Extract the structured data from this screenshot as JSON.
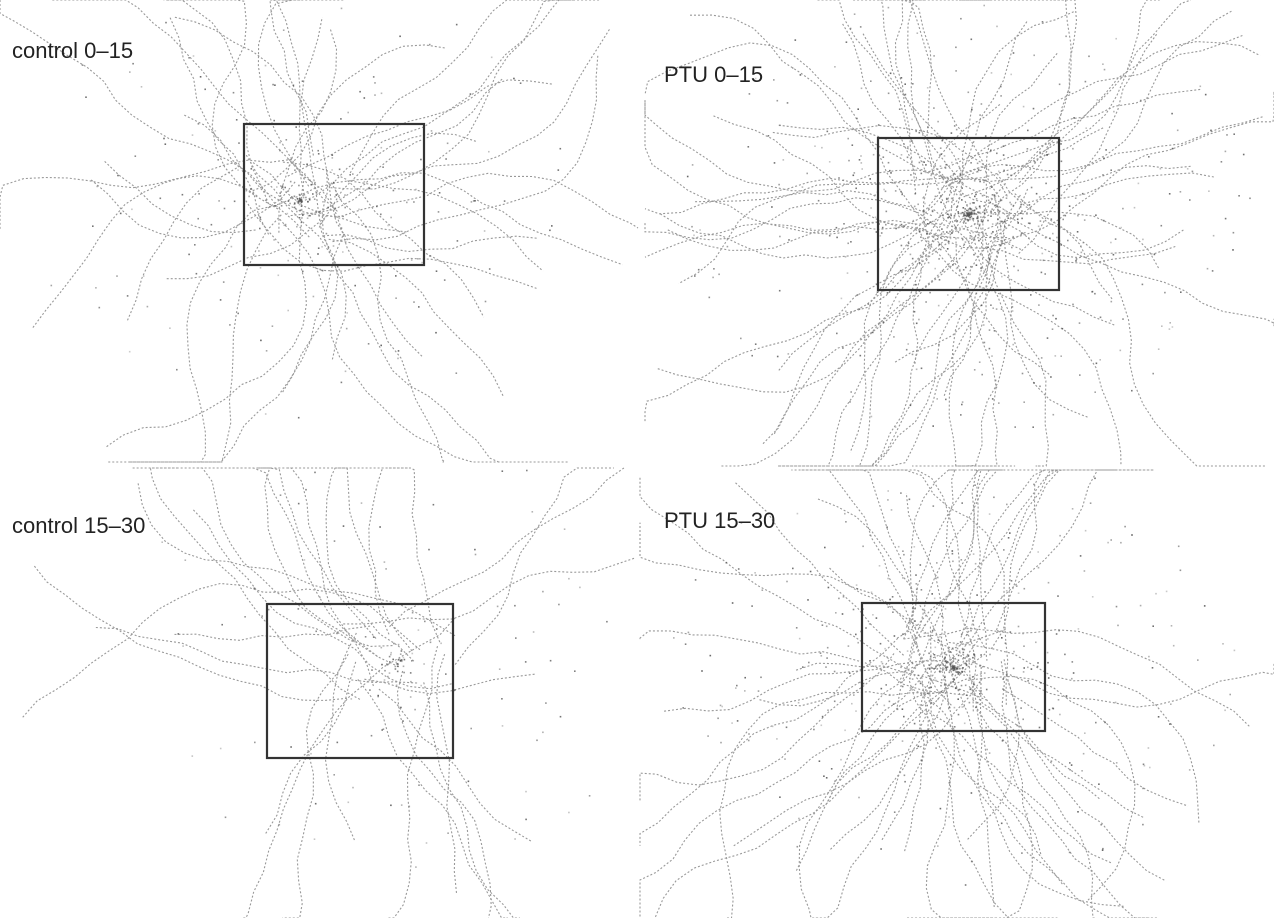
{
  "panels": [
    {
      "label": "control 0–15"
    },
    {
      "label": "PTU 0–15"
    },
    {
      "label": "control 15–30"
    },
    {
      "label": "PTU 15–30"
    }
  ]
}
